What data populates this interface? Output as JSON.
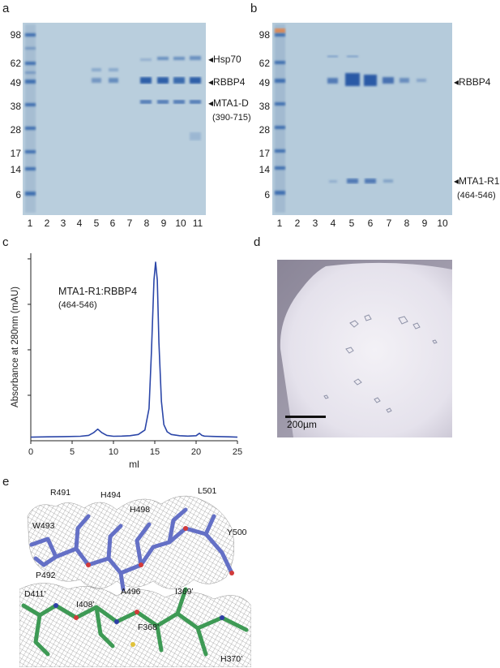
{
  "panel_a": {
    "label": "a",
    "mw": [
      "98",
      "62",
      "49",
      "38",
      "28",
      "17",
      "14",
      "6"
    ],
    "lanes": [
      "1",
      "2",
      "3",
      "4",
      "5",
      "6",
      "7",
      "8",
      "9",
      "10",
      "11"
    ],
    "annotations": [
      "Hsp70",
      "RBBP4",
      "MTA1-D"
    ],
    "sub": "(390-715)"
  },
  "panel_b": {
    "label": "b",
    "mw": [
      "98",
      "62",
      "49",
      "38",
      "28",
      "17",
      "14",
      "6"
    ],
    "lanes": [
      "1",
      "2",
      "3",
      "4",
      "5",
      "6",
      "7",
      "8",
      "9",
      "10"
    ],
    "annotations": [
      "RBBP4",
      "MTA1-R1"
    ],
    "sub": "(464-546)"
  },
  "panel_c": {
    "label": "c",
    "legend_title": "MTA1-R1:RBBP4",
    "legend_sub": "(464-546)"
  },
  "panel_d": {
    "label": "d",
    "scale_label": "200µm"
  },
  "panel_e": {
    "label": "e",
    "residues": [
      "R491",
      "H494",
      "L501",
      "H498",
      "W493",
      "Y500",
      "P492",
      "A496",
      "I369’",
      "D411’",
      "I408’",
      "F368’",
      "H370’"
    ]
  },
  "chart_data": {
    "type": "line",
    "xlabel": "ml",
    "ylabel": "Absorbance at 280nm (mAU)",
    "xlim": [
      0,
      25
    ],
    "xticks": [
      "0",
      "5",
      "10",
      "15",
      "20",
      "25"
    ],
    "color": "#2b46a8",
    "series": [
      {
        "x": [
          0,
          2,
          4,
          6,
          7,
          7.6,
          8.1,
          8.6,
          9.2,
          10,
          11,
          12,
          13,
          13.8,
          14.3,
          14.6,
          14.9,
          15.1,
          15.3,
          15.5,
          15.8,
          16.1,
          16.5,
          17,
          18,
          19,
          20,
          20.4,
          20.7,
          21,
          22,
          23,
          24,
          25
        ],
        "y": [
          2,
          2.2,
          2.3,
          2.5,
          3,
          4.5,
          6.5,
          4.5,
          3,
          2.5,
          2.6,
          2.8,
          3.5,
          6,
          18,
          50,
          90,
          100,
          90,
          55,
          22,
          9,
          5,
          3.5,
          2.8,
          2.6,
          2.8,
          4.2,
          3,
          2.6,
          2.4,
          2.3,
          2.2,
          2
        ]
      }
    ]
  }
}
